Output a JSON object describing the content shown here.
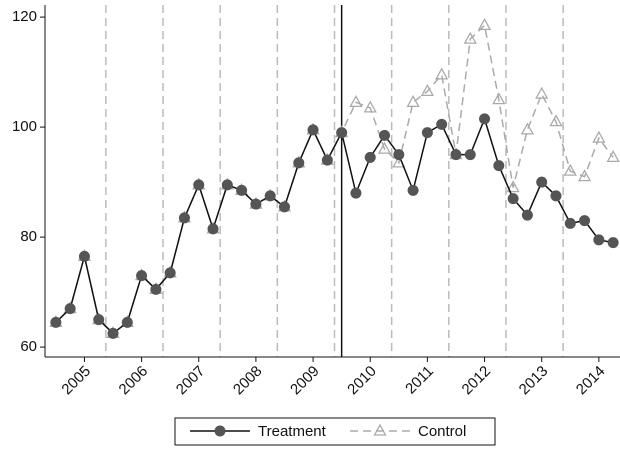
{
  "chart_data": {
    "type": "line",
    "x": [
      2004.5,
      2004.75,
      2005,
      2005.25,
      2005.5,
      2005.75,
      2006,
      2006.25,
      2006.5,
      2006.75,
      2007,
      2007.25,
      2007.5,
      2007.75,
      2008,
      2008.25,
      2008.5,
      2008.75,
      2009,
      2009.25,
      2009.5,
      2009.75,
      2010,
      2010.25,
      2010.5,
      2010.75,
      2011,
      2011.25,
      2011.5,
      2011.75,
      2012,
      2012.25,
      2012.5,
      2012.75,
      2013,
      2013.25,
      2013.5,
      2013.75,
      2014,
      2014.25
    ],
    "series": [
      {
        "name": "Treatment",
        "color": "#555555",
        "line_color": "#111111",
        "marker": "circle",
        "dashed": false,
        "values": [
          64.5,
          67,
          76.5,
          65,
          62.5,
          64.5,
          73,
          70.5,
          73.5,
          83.5,
          89.5,
          81.5,
          89.5,
          88.5,
          86,
          87.5,
          85.5,
          93.5,
          99.5,
          94,
          99,
          88,
          94.5,
          98.5,
          95,
          88.5,
          99,
          100.5,
          95,
          95,
          101.5,
          93,
          87,
          84,
          90,
          87.5,
          82.5,
          83,
          79.5,
          79
        ]
      },
      {
        "name": "Control",
        "color": "#aaaaaa",
        "line_color": "#aaaaaa",
        "marker": "triangle",
        "dashed": true,
        "values": [
          64.5,
          67,
          76.5,
          65,
          62.5,
          64.5,
          73,
          70.5,
          73.5,
          83.5,
          89.5,
          81.5,
          89.5,
          88.5,
          86,
          87.5,
          85.5,
          93.5,
          99.5,
          94,
          99,
          104.5,
          103.5,
          96,
          93.5,
          104.5,
          106.5,
          109.5,
          95,
          116,
          118.5,
          105,
          89,
          99.5,
          106,
          101,
          92,
          91,
          98,
          94.5
        ]
      }
    ],
    "xlim": [
      2004.31,
      2014.37
    ],
    "ylim": [
      58.2,
      122.2
    ],
    "xticks": [
      2005,
      2006,
      2007,
      2008,
      2009,
      2010,
      2011,
      2012,
      2013,
      2014
    ],
    "yticks": [
      60,
      80,
      100,
      120
    ],
    "year_lines": [
      2005.375,
      2006.375,
      2007.375,
      2008.375,
      2009.375,
      2010.375,
      2011.375,
      2012.375,
      2013.375
    ],
    "treatment_start": 2009.5,
    "legend": "bottom"
  }
}
